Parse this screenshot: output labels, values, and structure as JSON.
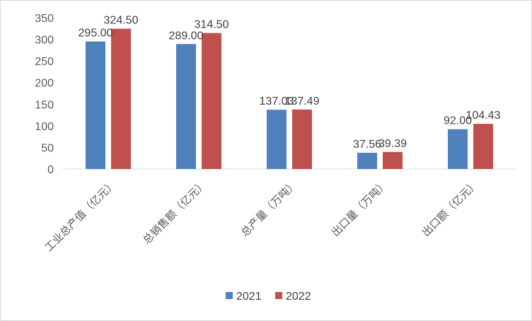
{
  "chart_data": {
    "type": "bar",
    "title": "",
    "xlabel": "",
    "ylabel": "",
    "ylim": [
      0,
      350
    ],
    "yticks": [
      0,
      50,
      100,
      150,
      200,
      250,
      300,
      350
    ],
    "grid": false,
    "legend_position": "bottom",
    "categories": [
      "工业总产值（亿元）",
      "总销售额（亿元）",
      "总产量（万吨）",
      "出口量（万吨）",
      "出口额（亿元）"
    ],
    "series": [
      {
        "name": "2021",
        "color": "#4f81bd",
        "values": [
          295.0,
          289.0,
          137.03,
          37.56,
          92.0
        ],
        "labels": [
          "295.00",
          "289.00",
          "137.03",
          "37.56",
          "92.00"
        ]
      },
      {
        "name": "2022",
        "color": "#c0504d",
        "values": [
          324.5,
          314.5,
          137.49,
          39.39,
          104.43
        ],
        "labels": [
          "324.50",
          "314.50",
          "137.49",
          "39.39",
          "104.43"
        ]
      }
    ]
  }
}
